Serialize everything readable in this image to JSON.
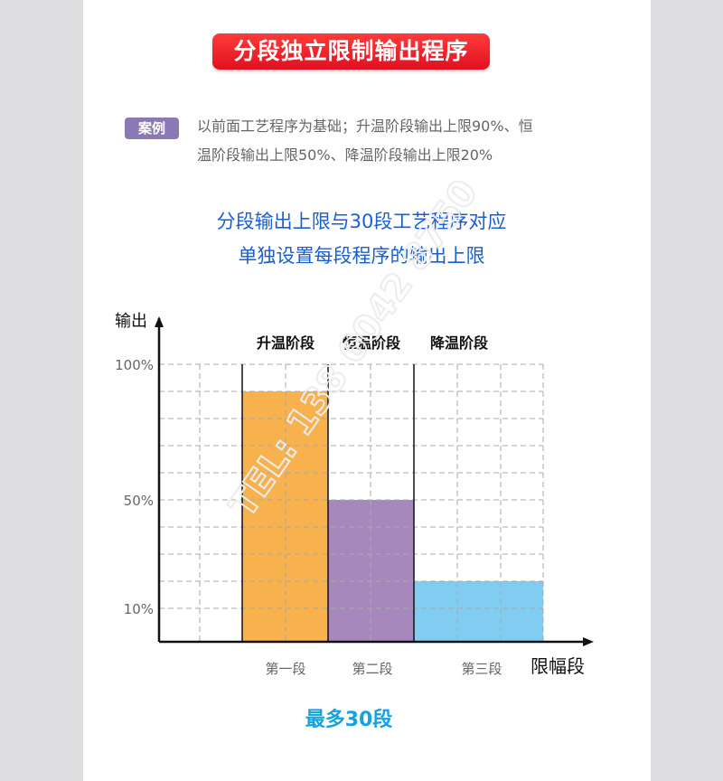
{
  "title": "分段独立限制输出程序",
  "case": {
    "badge": "案例",
    "line1": "以前面工艺程序为基础；升温阶段输出上限90%、恒",
    "line2": "温阶段输出上限50%、降温阶段输出上限20%"
  },
  "subtitle": {
    "line1": "分段输出上限与30段工艺程序对应",
    "line2": "单独设置每段程序的输出上限"
  },
  "footer": "最多30段",
  "watermark": "TEL: 138 6042 8750",
  "chart_data": {
    "type": "bar",
    "ylabel": "输出",
    "xlabel": "限幅段",
    "ytick_labels": [
      "100%",
      "50%",
      "10%"
    ],
    "ylim": [
      0,
      100
    ],
    "grid": true,
    "stage_labels": [
      "升温阶段",
      "恒温阶段",
      "降温阶段"
    ],
    "categories": [
      "第一段",
      "第二段",
      "第三段"
    ],
    "values": [
      90,
      50,
      20
    ],
    "colors": [
      "#f7b24e",
      "#a688bd",
      "#80cdf1"
    ]
  }
}
